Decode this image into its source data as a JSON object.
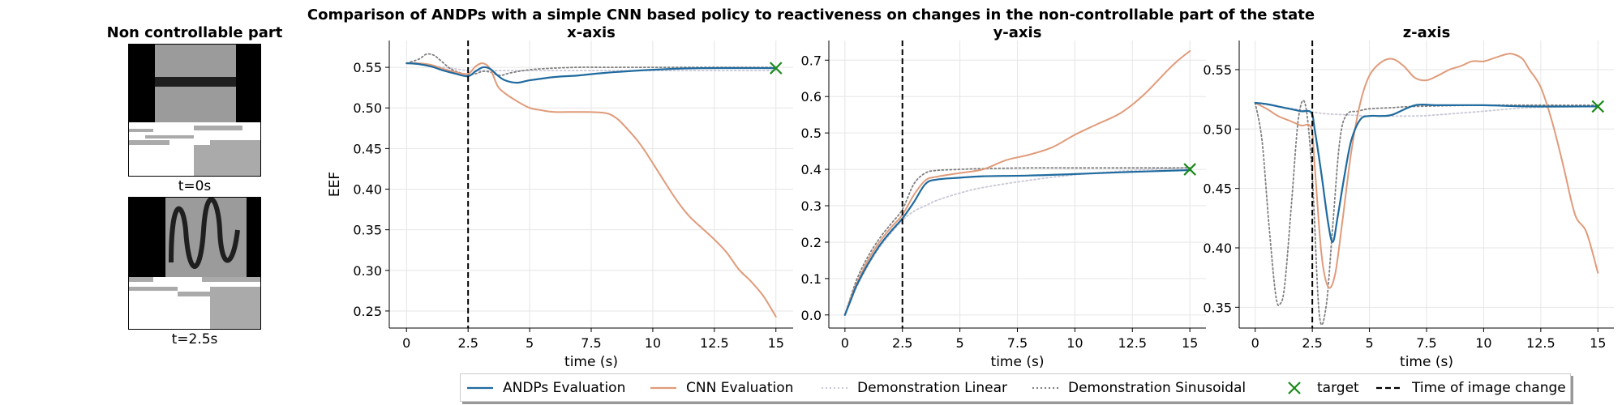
{
  "figure": {
    "title": "Comparison of ANDPs with a simple CNN based policy to reactiveness on changes in the non-controllable part of the state"
  },
  "image_panel": {
    "title": "Non controllable part",
    "frames": [
      {
        "caption": "t=0s",
        "pattern": "horizontal-bar"
      },
      {
        "caption": "t=2.5s",
        "pattern": "sinusoid"
      }
    ]
  },
  "colors": {
    "andps": "#1f6a9e",
    "cnn": "#e09b7a",
    "demo_linear": "#c8c8d8",
    "demo_sinusoidal": "#7f7f7f",
    "target": "#1a8a1a",
    "image_change": "#000000"
  },
  "legend": {
    "items": [
      {
        "key": "andps",
        "label": "ANDPs Evaluation"
      },
      {
        "key": "cnn",
        "label": "CNN Evaluation"
      },
      {
        "key": "demo_linear",
        "label": "Demonstration Linear"
      },
      {
        "key": "demo_sinusoidal",
        "label": "Demonstration Sinusoidal"
      },
      {
        "key": "target",
        "label": "target"
      },
      {
        "key": "image_change",
        "label": "Time of image change"
      }
    ]
  },
  "chart_data": [
    {
      "type": "line",
      "title": "x-axis",
      "xlabel": "time (s)",
      "ylabel": "EEF",
      "xlim": [
        -0.7,
        15.7
      ],
      "ylim": [
        0.229,
        0.583
      ],
      "xticks": [
        0,
        2.5,
        5,
        7.5,
        10,
        12.5,
        15
      ],
      "xtick_labels": [
        "0",
        "2.5",
        "5",
        "7.5",
        "10",
        "12.5",
        "15"
      ],
      "yticks": [
        0.25,
        0.3,
        0.35,
        0.4,
        0.45,
        0.5,
        0.55
      ],
      "ytick_labels": [
        "0.25",
        "0.30",
        "0.35",
        "0.40",
        "0.45",
        "0.50",
        "0.55"
      ],
      "grid": true,
      "image_change_time": 2.5,
      "target": {
        "x": 15,
        "y": 0.549
      },
      "series": [
        {
          "name": "ANDPs Evaluation",
          "key": "andps",
          "x": [
            0,
            0.5,
            1,
            1.5,
            2,
            2.5,
            2.8,
            3.1,
            3.4,
            3.7,
            4,
            4.5,
            5,
            6,
            7,
            8,
            10,
            12,
            15
          ],
          "y": [
            0.555,
            0.554,
            0.551,
            0.546,
            0.542,
            0.539,
            0.545,
            0.55,
            0.548,
            0.54,
            0.534,
            0.531,
            0.534,
            0.538,
            0.54,
            0.543,
            0.547,
            0.549,
            0.549
          ]
        },
        {
          "name": "CNN Evaluation",
          "key": "cnn",
          "x": [
            0,
            0.5,
            1,
            1.5,
            2,
            2.5,
            2.8,
            3.1,
            3.4,
            3.7,
            4,
            4.5,
            5,
            5.5,
            6,
            7,
            8,
            8.5,
            9,
            9.5,
            10,
            10.5,
            11,
            11.5,
            12,
            12.5,
            13,
            13.5,
            14,
            14.5,
            15
          ],
          "y": [
            0.555,
            0.555,
            0.553,
            0.548,
            0.544,
            0.542,
            0.551,
            0.555,
            0.548,
            0.527,
            0.518,
            0.508,
            0.5,
            0.497,
            0.495,
            0.495,
            0.494,
            0.488,
            0.473,
            0.455,
            0.432,
            0.408,
            0.385,
            0.366,
            0.352,
            0.338,
            0.322,
            0.301,
            0.286,
            0.268,
            0.243
          ]
        },
        {
          "name": "Demonstration Linear",
          "key": "demo_linear",
          "x": [
            0,
            0.5,
            1,
            1.5,
            2,
            2.5,
            3,
            3.5,
            4,
            5,
            6,
            8,
            10,
            15
          ],
          "y": [
            0.555,
            0.554,
            0.552,
            0.55,
            0.548,
            0.546,
            0.546,
            0.546,
            0.546,
            0.546,
            0.546,
            0.546,
            0.546,
            0.546
          ]
        },
        {
          "name": "Demonstration Sinusoidal",
          "key": "demo_sinusoidal",
          "x": [
            0,
            0.5,
            0.8,
            1.1,
            1.4,
            1.8,
            2.2,
            2.5,
            2.8,
            3.1,
            3.4,
            3.8,
            4.2,
            5,
            6,
            7,
            8,
            10,
            15
          ],
          "y": [
            0.555,
            0.56,
            0.566,
            0.565,
            0.558,
            0.548,
            0.543,
            0.541,
            0.542,
            0.545,
            0.544,
            0.54,
            0.543,
            0.547,
            0.549,
            0.55,
            0.55,
            0.55,
            0.55
          ]
        }
      ]
    },
    {
      "type": "line",
      "title": "y-axis",
      "xlabel": "time (s)",
      "ylabel": "",
      "xlim": [
        -0.7,
        15.7
      ],
      "ylim": [
        -0.036,
        0.754
      ],
      "xticks": [
        0,
        2.5,
        5,
        7.5,
        10,
        12.5,
        15
      ],
      "xtick_labels": [
        "0",
        "2.5",
        "5",
        "7.5",
        "10",
        "12.5",
        "15"
      ],
      "yticks": [
        0.0,
        0.1,
        0.2,
        0.3,
        0.4,
        0.5,
        0.6,
        0.7
      ],
      "ytick_labels": [
        "0.0",
        "0.1",
        "0.2",
        "0.3",
        "0.4",
        "0.5",
        "0.6",
        "0.7"
      ],
      "grid": true,
      "image_change_time": 2.5,
      "target": {
        "x": 15,
        "y": 0.4
      },
      "series": [
        {
          "name": "ANDPs Evaluation",
          "key": "andps",
          "x": [
            0,
            0.25,
            0.5,
            1,
            1.5,
            2,
            2.5,
            3,
            3.5,
            4,
            5,
            6,
            8,
            10,
            12,
            15
          ],
          "y": [
            0.0,
            0.04,
            0.08,
            0.14,
            0.19,
            0.23,
            0.265,
            0.31,
            0.36,
            0.372,
            0.377,
            0.381,
            0.383,
            0.387,
            0.392,
            0.398
          ]
        },
        {
          "name": "CNN Evaluation",
          "key": "cnn",
          "x": [
            0,
            0.25,
            0.5,
            1,
            1.5,
            2,
            2.5,
            3,
            3.5,
            4,
            5,
            6,
            7,
            8,
            9,
            10,
            11,
            12,
            13,
            14,
            14.5,
            15
          ],
          "y": [
            0.0,
            0.045,
            0.085,
            0.15,
            0.2,
            0.24,
            0.275,
            0.33,
            0.37,
            0.38,
            0.39,
            0.4,
            0.425,
            0.44,
            0.46,
            0.495,
            0.525,
            0.555,
            0.605,
            0.67,
            0.7,
            0.725
          ]
        },
        {
          "name": "Demonstration Linear",
          "key": "demo_linear",
          "x": [
            0,
            0.5,
            1,
            1.5,
            2,
            2.5,
            3,
            3.5,
            4,
            5,
            6,
            8,
            10,
            12,
            15
          ],
          "y": [
            0.0,
            0.075,
            0.135,
            0.185,
            0.225,
            0.26,
            0.285,
            0.3,
            0.315,
            0.335,
            0.35,
            0.37,
            0.385,
            0.395,
            0.405
          ]
        },
        {
          "name": "Demonstration Sinusoidal",
          "key": "demo_sinusoidal",
          "x": [
            0,
            0.5,
            1,
            1.5,
            2,
            2.5,
            3,
            3.5,
            4,
            5,
            6,
            8,
            10,
            15
          ],
          "y": [
            0.0,
            0.095,
            0.16,
            0.21,
            0.25,
            0.29,
            0.36,
            0.39,
            0.397,
            0.4,
            0.402,
            0.404,
            0.404,
            0.404
          ]
        }
      ]
    },
    {
      "type": "line",
      "title": "z-axis",
      "xlabel": "time (s)",
      "ylabel": "",
      "xlim": [
        -0.7,
        15.7
      ],
      "ylim": [
        0.3325,
        0.5745
      ],
      "xticks": [
        0,
        2.5,
        5,
        7.5,
        10,
        12.5,
        15
      ],
      "xtick_labels": [
        "0",
        "2.5",
        "5",
        "7.5",
        "10",
        "12.5",
        "15"
      ],
      "yticks": [
        0.35,
        0.4,
        0.45,
        0.5,
        0.55
      ],
      "ytick_labels": [
        "0.35",
        "0.40",
        "0.45",
        "0.50",
        "0.55"
      ],
      "grid": true,
      "image_change_time": 2.5,
      "target": {
        "x": 15,
        "y": 0.519
      },
      "series": [
        {
          "name": "ANDPs Evaluation",
          "key": "andps",
          "x": [
            0,
            0.5,
            1,
            1.5,
            2,
            2.45,
            2.6,
            2.9,
            3.2,
            3.4,
            3.6,
            3.9,
            4.2,
            4.6,
            5,
            5.5,
            6,
            7,
            8,
            10,
            12,
            15
          ],
          "y": [
            0.522,
            0.521,
            0.519,
            0.517,
            0.515,
            0.514,
            0.5,
            0.462,
            0.42,
            0.405,
            0.425,
            0.46,
            0.49,
            0.508,
            0.511,
            0.511,
            0.512,
            0.52,
            0.52,
            0.52,
            0.519,
            0.519
          ]
        },
        {
          "name": "CNN Evaluation",
          "key": "cnn",
          "x": [
            0,
            0.5,
            1,
            1.5,
            2,
            2.45,
            2.6,
            2.9,
            3.2,
            3.5,
            3.8,
            4.2,
            4.6,
            5,
            5.5,
            6,
            6.5,
            7,
            7.5,
            8,
            8.5,
            9,
            9.5,
            10,
            10.5,
            11,
            11.3,
            11.7,
            12,
            12.5,
            13,
            13.5,
            14,
            14.5,
            15
          ],
          "y": [
            0.522,
            0.517,
            0.511,
            0.507,
            0.503,
            0.501,
            0.47,
            0.395,
            0.367,
            0.378,
            0.42,
            0.48,
            0.522,
            0.545,
            0.556,
            0.559,
            0.553,
            0.543,
            0.541,
            0.545,
            0.55,
            0.553,
            0.557,
            0.557,
            0.56,
            0.563,
            0.563,
            0.559,
            0.55,
            0.535,
            0.506,
            0.468,
            0.428,
            0.413,
            0.379
          ]
        },
        {
          "name": "Demonstration Linear",
          "key": "demo_linear",
          "x": [
            0,
            1,
            2,
            3,
            4,
            5,
            7,
            8,
            10,
            12,
            15
          ],
          "y": [
            0.522,
            0.519,
            0.516,
            0.513,
            0.512,
            0.511,
            0.511,
            0.512,
            0.515,
            0.518,
            0.519
          ]
        },
        {
          "name": "Demonstration Sinusoidal",
          "key": "demo_sinusoidal",
          "x": [
            0,
            0.3,
            0.6,
            0.9,
            1.1,
            1.3,
            1.6,
            1.9,
            2.2,
            2.5,
            2.8,
            3.1,
            3.4,
            3.7,
            4,
            4.5,
            5,
            6,
            7,
            10,
            15
          ],
          "y": [
            0.522,
            0.49,
            0.42,
            0.36,
            0.353,
            0.37,
            0.44,
            0.51,
            0.52,
            0.46,
            0.345,
            0.35,
            0.42,
            0.49,
            0.512,
            0.515,
            0.517,
            0.518,
            0.519,
            0.52,
            0.52
          ]
        }
      ]
    }
  ]
}
